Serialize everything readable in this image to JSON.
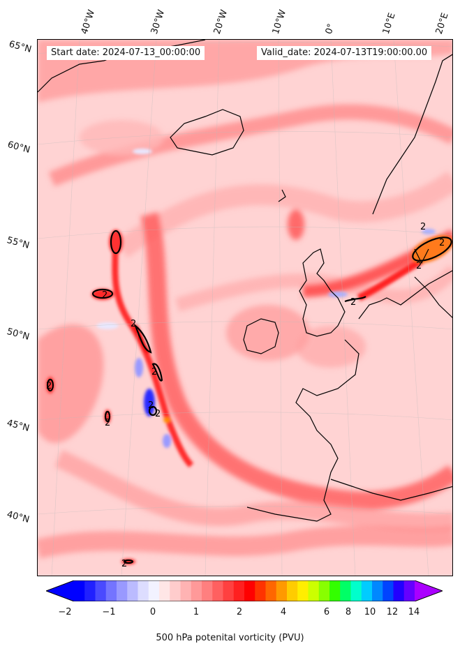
{
  "header": {
    "start_date": "Start date: 2024-07-13_00:00:00",
    "valid_date": "Valid_date: 2024-07-13T19:00:00.00"
  },
  "axes": {
    "longitude_labels": [
      "40°W",
      "30°W",
      "20°W",
      "10°W",
      "0°",
      "10°E",
      "20°E"
    ],
    "latitude_labels": [
      "65°N",
      "60°N",
      "55°N",
      "50°N",
      "45°N",
      "40°N"
    ]
  },
  "contour_labels": [
    "2",
    "2",
    "2",
    "2",
    "2",
    "2",
    "2",
    "2",
    "2",
    "2",
    "2",
    "2"
  ],
  "colorbar": {
    "label": "500 hPa potenital vorticity (PVU)",
    "ticks": [
      "−2",
      "−1",
      "0",
      "1",
      "2",
      "4",
      "6",
      "8",
      "10",
      "12",
      "14"
    ],
    "colors": [
      "#0000ff",
      "#2020ff",
      "#4a4aff",
      "#7474ff",
      "#9999ff",
      "#bbbbff",
      "#ddddff",
      "#f2f2ff",
      "#ffe6e6",
      "#ffcccc",
      "#ffb3b3",
      "#ff9999",
      "#ff7f7f",
      "#ff6060",
      "#ff4040",
      "#ff2020",
      "#ff0000",
      "#ff3300",
      "#ff6600",
      "#ff9900",
      "#ffcc00",
      "#ffee00",
      "#ccff00",
      "#88ff00",
      "#33ff00",
      "#00ff66",
      "#00ffcc",
      "#00ccff",
      "#0088ff",
      "#0044ff",
      "#2200ff",
      "#6600ff"
    ],
    "min_color": "#0000ff",
    "max_color": "#aa00ff"
  }
}
